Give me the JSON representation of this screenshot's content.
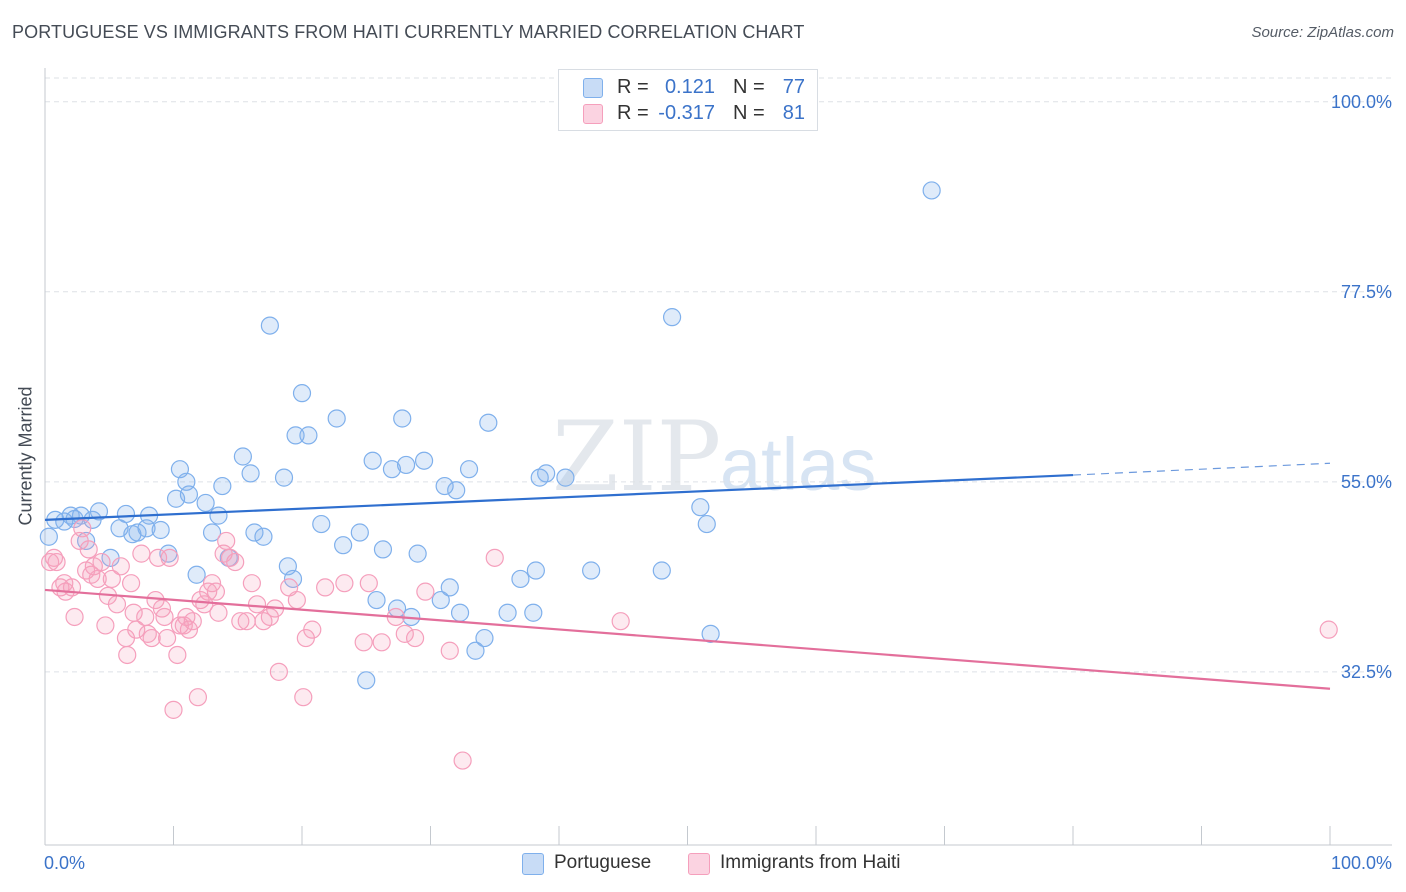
{
  "title": "PORTUGUESE VS IMMIGRANTS FROM HAITI CURRENTLY MARRIED CORRELATION CHART",
  "source": "Source: ZipAtlas.com",
  "watermark": {
    "zip": "ZIP",
    "atlas": "atlas"
  },
  "stats": [
    {
      "r_label": "R =",
      "r_value": "0.121",
      "n_label": "N =",
      "n_value": "77",
      "color": "#7fb0ec"
    },
    {
      "r_label": "R =",
      "r_value": "-0.317",
      "n_label": "N =",
      "n_value": "81",
      "color": "#f59fbc"
    }
  ],
  "legend": [
    {
      "label": "Portuguese",
      "color": "#7fb0ec"
    },
    {
      "label": "Immigrants from Haiti",
      "color": "#f59fbc"
    }
  ],
  "chart_data": {
    "type": "scatter",
    "title": "PORTUGUESE VS IMMIGRANTS FROM HAITI CURRENTLY MARRIED CORRELATION CHART",
    "xlabel": "",
    "ylabel": "Currently Married",
    "xlim": [
      0,
      100
    ],
    "ylim": [
      12,
      104
    ],
    "x_tick_labels": [
      "0.0%",
      "100.0%"
    ],
    "y_ticks": [
      32.5,
      55.0,
      77.5,
      100.0
    ],
    "y_tick_labels": [
      "32.5%",
      "55.0%",
      "77.5%",
      "100.0%"
    ],
    "grid": true,
    "series": [
      {
        "name": "Portuguese",
        "color": "#7fb0ec",
        "line_color": "#2f6fcf",
        "trend": {
          "x": [
            0,
            80
          ],
          "y": [
            50.5,
            55.8
          ],
          "dashed_to": [
            100,
            57.2
          ]
        },
        "points": [
          [
            0.8,
            50.5
          ],
          [
            1.5,
            50.3
          ],
          [
            2.0,
            51.0
          ],
          [
            2.3,
            50.6
          ],
          [
            2.8,
            51.0
          ],
          [
            3.2,
            48.0
          ],
          [
            3.7,
            50.5
          ],
          [
            4.2,
            51.5
          ],
          [
            5.1,
            46.0
          ],
          [
            5.8,
            49.5
          ],
          [
            6.3,
            51.2
          ],
          [
            6.8,
            48.8
          ],
          [
            7.2,
            49.0
          ],
          [
            7.9,
            49.5
          ],
          [
            8.1,
            51.0
          ],
          [
            9.0,
            49.3
          ],
          [
            9.6,
            46.5
          ],
          [
            10.5,
            56.5
          ],
          [
            10.2,
            53.0
          ],
          [
            11.0,
            55.0
          ],
          [
            11.2,
            53.5
          ],
          [
            11.8,
            44.0
          ],
          [
            12.5,
            52.5
          ],
          [
            13.0,
            49.0
          ],
          [
            13.5,
            51.0
          ],
          [
            13.8,
            54.5
          ],
          [
            14.3,
            46.0
          ],
          [
            15.4,
            58.0
          ],
          [
            16.0,
            56.0
          ],
          [
            16.3,
            49.0
          ],
          [
            17.0,
            48.5
          ],
          [
            17.5,
            73.5
          ],
          [
            18.6,
            55.5
          ],
          [
            18.9,
            45.0
          ],
          [
            19.3,
            43.5
          ],
          [
            19.5,
            60.5
          ],
          [
            20.0,
            65.5
          ],
          [
            20.5,
            60.5
          ],
          [
            21.5,
            50.0
          ],
          [
            22.7,
            62.5
          ],
          [
            23.2,
            47.5
          ],
          [
            24.5,
            49.0
          ],
          [
            25.0,
            31.5
          ],
          [
            25.5,
            57.5
          ],
          [
            25.8,
            41.0
          ],
          [
            26.3,
            47.0
          ],
          [
            27.0,
            56.5
          ],
          [
            27.4,
            40.0
          ],
          [
            27.8,
            62.5
          ],
          [
            28.1,
            57.0
          ],
          [
            28.5,
            39.0
          ],
          [
            29.0,
            46.5
          ],
          [
            29.5,
            57.5
          ],
          [
            30.8,
            41.0
          ],
          [
            31.1,
            54.5
          ],
          [
            31.5,
            42.5
          ],
          [
            32.0,
            54.0
          ],
          [
            32.3,
            39.5
          ],
          [
            33.0,
            56.5
          ],
          [
            33.5,
            35.0
          ],
          [
            34.2,
            36.5
          ],
          [
            34.5,
            62.0
          ],
          [
            36.0,
            39.5
          ],
          [
            37.0,
            43.5
          ],
          [
            38.0,
            39.5
          ],
          [
            38.2,
            44.5
          ],
          [
            38.5,
            55.5
          ],
          [
            39.0,
            56.0
          ],
          [
            40.5,
            55.5
          ],
          [
            42.5,
            44.5
          ],
          [
            48.0,
            44.5
          ],
          [
            48.8,
            74.5
          ],
          [
            51.0,
            52.0
          ],
          [
            51.5,
            50.0
          ],
          [
            51.8,
            37.0
          ],
          [
            69.0,
            89.5
          ],
          [
            0.3,
            48.5
          ]
        ]
      },
      {
        "name": "Immigrants from Haiti",
        "color": "#f59fbc",
        "line_color": "#e36f9b",
        "trend": {
          "x": [
            0,
            100
          ],
          "y": [
            42.2,
            30.5
          ]
        },
        "points": [
          [
            0.4,
            45.5
          ],
          [
            0.7,
            46.0
          ],
          [
            0.9,
            45.5
          ],
          [
            1.2,
            42.5
          ],
          [
            1.5,
            43.0
          ],
          [
            1.6,
            42.0
          ],
          [
            2.1,
            42.5
          ],
          [
            2.3,
            39.0
          ],
          [
            2.7,
            48.0
          ],
          [
            2.9,
            49.5
          ],
          [
            3.2,
            44.5
          ],
          [
            3.4,
            47.0
          ],
          [
            3.6,
            44.0
          ],
          [
            3.8,
            45.0
          ],
          [
            4.1,
            43.5
          ],
          [
            4.4,
            45.5
          ],
          [
            4.7,
            38.0
          ],
          [
            4.9,
            41.5
          ],
          [
            5.2,
            43.5
          ],
          [
            5.6,
            40.5
          ],
          [
            5.9,
            45.0
          ],
          [
            6.3,
            36.5
          ],
          [
            6.4,
            34.5
          ],
          [
            6.7,
            43.0
          ],
          [
            6.9,
            39.5
          ],
          [
            7.1,
            37.5
          ],
          [
            7.5,
            46.5
          ],
          [
            7.8,
            39.0
          ],
          [
            8.0,
            37.0
          ],
          [
            8.3,
            36.5
          ],
          [
            8.6,
            41.0
          ],
          [
            8.8,
            46.0
          ],
          [
            9.1,
            40.0
          ],
          [
            9.3,
            39.0
          ],
          [
            9.5,
            36.5
          ],
          [
            9.7,
            46.0
          ],
          [
            10.0,
            28.0
          ],
          [
            10.3,
            34.5
          ],
          [
            10.5,
            38.0
          ],
          [
            10.8,
            38.0
          ],
          [
            11.0,
            39.0
          ],
          [
            11.2,
            37.5
          ],
          [
            11.5,
            38.5
          ],
          [
            11.9,
            29.5
          ],
          [
            12.1,
            41.0
          ],
          [
            12.4,
            40.5
          ],
          [
            12.7,
            42.0
          ],
          [
            13.0,
            43.0
          ],
          [
            13.3,
            42.0
          ],
          [
            13.5,
            39.5
          ],
          [
            13.9,
            46.5
          ],
          [
            14.1,
            48.0
          ],
          [
            14.4,
            46.0
          ],
          [
            14.8,
            45.5
          ],
          [
            15.2,
            38.5
          ],
          [
            15.7,
            38.5
          ],
          [
            16.1,
            43.0
          ],
          [
            16.5,
            40.5
          ],
          [
            17.0,
            38.5
          ],
          [
            17.5,
            39.0
          ],
          [
            17.9,
            40.0
          ],
          [
            18.2,
            32.5
          ],
          [
            19.0,
            42.5
          ],
          [
            19.6,
            41.0
          ],
          [
            20.1,
            29.5
          ],
          [
            20.3,
            36.5
          ],
          [
            20.8,
            37.5
          ],
          [
            21.8,
            42.5
          ],
          [
            23.3,
            43.0
          ],
          [
            24.8,
            36.0
          ],
          [
            25.2,
            43.0
          ],
          [
            26.2,
            36.0
          ],
          [
            27.3,
            39.0
          ],
          [
            28.0,
            37.0
          ],
          [
            28.8,
            36.5
          ],
          [
            29.6,
            42.0
          ],
          [
            31.5,
            35.0
          ],
          [
            32.5,
            22.0
          ],
          [
            35.0,
            46.0
          ],
          [
            44.8,
            38.5
          ],
          [
            99.9,
            37.5
          ]
        ]
      }
    ]
  }
}
